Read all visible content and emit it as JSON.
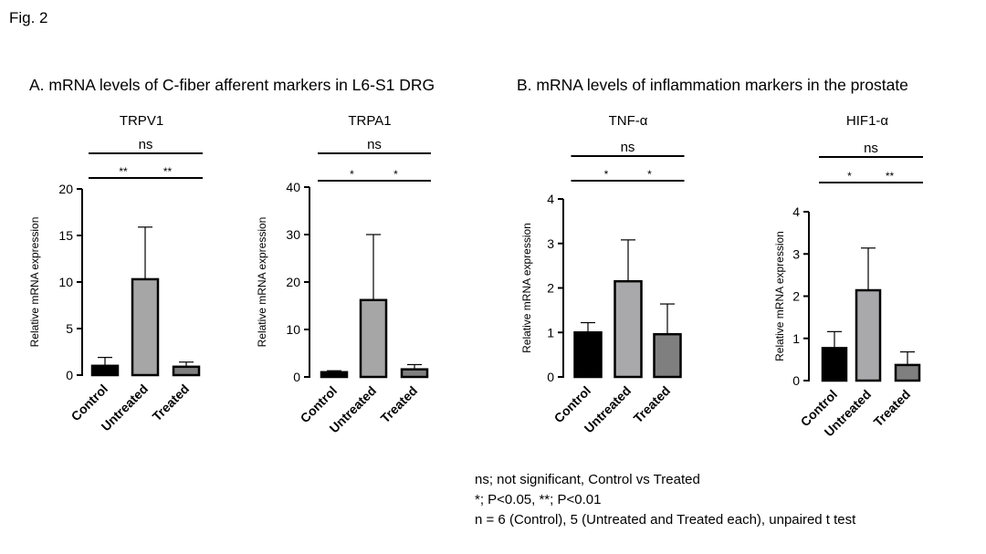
{
  "figure_label": "Fig. 2",
  "panels": {
    "a": "A. mRNA levels of C-fiber afferent markers in L6-S1 DRG",
    "b": "B. mRNA levels of inflammation markers in the prostate"
  },
  "footnotes": [
    "ns; not significant, Control vs Treated",
    "*; P<0.05, **; P<0.01",
    "n = 6 (Control), 5 (Untreated and Treated each), unpaired t test"
  ],
  "colors": {
    "control": "#000000",
    "untreated_A": "#a6a6a6",
    "untreated_B": "#a9a9ab",
    "treated_A": "#808080",
    "treated_B": "#7f7f7f"
  },
  "chart_data": [
    {
      "type": "bar",
      "panel": "A",
      "title": "TRPV1",
      "ylabel": "Relative mRNA expression",
      "categories": [
        "Control",
        "Untreated",
        "Treated"
      ],
      "values": [
        1.0,
        10.3,
        0.9
      ],
      "error_upper": [
        1.9,
        15.9,
        1.4
      ],
      "ylim": [
        0,
        20
      ],
      "yticks": [
        0,
        5,
        10,
        15,
        20
      ],
      "significance": [
        {
          "from": 0,
          "to": 2,
          "label": "ns"
        },
        {
          "from": 0,
          "to": 1,
          "label": "**"
        },
        {
          "from": 1,
          "to": 2,
          "label": "**"
        }
      ]
    },
    {
      "type": "bar",
      "panel": "A",
      "title": "TRPA1",
      "ylabel": "Relative mRNA expression",
      "categories": [
        "Control",
        "Untreated",
        "Treated"
      ],
      "values": [
        1.0,
        16.2,
        1.6
      ],
      "error_upper": [
        1.3,
        30.0,
        2.6
      ],
      "ylim": [
        0,
        40
      ],
      "yticks": [
        0,
        10,
        20,
        30,
        40
      ],
      "significance": [
        {
          "from": 0,
          "to": 2,
          "label": "ns"
        },
        {
          "from": 0,
          "to": 1,
          "label": "*"
        },
        {
          "from": 1,
          "to": 2,
          "label": "*"
        }
      ]
    },
    {
      "type": "bar",
      "panel": "B",
      "title": "TNF-α",
      "ylabel": "Relative mRNA expression",
      "categories": [
        "Control",
        "Untreated",
        "Treated"
      ],
      "values": [
        1.0,
        2.15,
        0.96
      ],
      "error_upper": [
        1.22,
        3.08,
        1.64
      ],
      "ylim": [
        0,
        4
      ],
      "yticks": [
        0,
        1,
        2,
        3,
        4
      ],
      "significance": [
        {
          "from": 0,
          "to": 2,
          "label": "ns"
        },
        {
          "from": 0,
          "to": 1,
          "label": "*"
        },
        {
          "from": 1,
          "to": 2,
          "label": "*"
        }
      ]
    },
    {
      "type": "bar",
      "panel": "B",
      "title": "HIF1-α",
      "ylabel": "Relative mRNA expression",
      "categories": [
        "Control",
        "Untreated",
        "Treated"
      ],
      "values": [
        0.77,
        2.14,
        0.37
      ],
      "error_upper": [
        1.16,
        3.14,
        0.68
      ],
      "ylim": [
        0,
        4
      ],
      "yticks": [
        0,
        1,
        2,
        3,
        4
      ],
      "significance": [
        {
          "from": 0,
          "to": 2,
          "label": "ns"
        },
        {
          "from": 0,
          "to": 1,
          "label": "*"
        },
        {
          "from": 1,
          "to": 2,
          "label": "**"
        }
      ]
    }
  ]
}
